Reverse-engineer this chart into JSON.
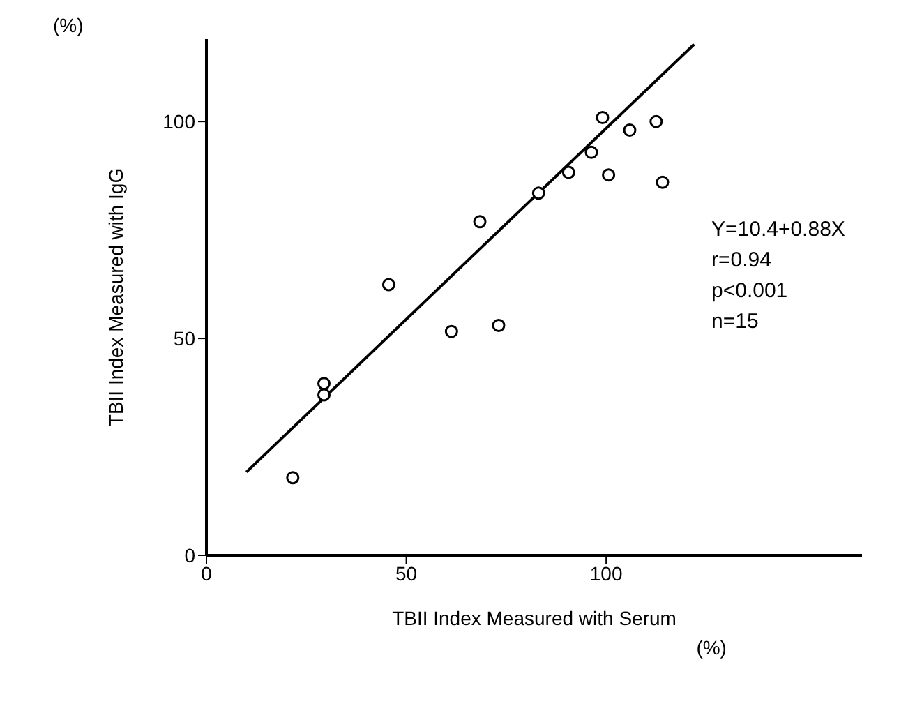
{
  "chart_data": {
    "type": "scatter",
    "xlabel": "TBII Index Measured with Serum",
    "ylabel": "TBII Index Measured with IgG",
    "xlim": [
      0,
      164
    ],
    "ylim": [
      0,
      119
    ],
    "xticks": [
      0,
      50,
      100
    ],
    "yticks": [
      0,
      50,
      100
    ],
    "series": [
      {
        "color": "#000000",
        "marker": "circle",
        "x": [
          21.6,
          29.4,
          29.4,
          45.6,
          61.3,
          68.4,
          73.1,
          83.1,
          90.6,
          96.3,
          99.1,
          105.9,
          100.6,
          112.5,
          114.1
        ],
        "values": [
          17.9,
          39.6,
          37.0,
          62.4,
          51.6,
          76.9,
          53.0,
          83.5,
          88.3,
          92.9,
          100.9,
          98.0,
          87.7,
          100.0,
          86.0
        ]
      },
      {
        "type": "line",
        "color": "#000000",
        "marker": "none",
        "x": [
          10,
          122
        ],
        "values": [
          19.2,
          117.8
        ]
      }
    ],
    "annotations": [
      "(%)",
      "(%)",
      "Y=10.4+0.88X",
      "r=0.94",
      "p<0.001",
      "n=15"
    ]
  }
}
